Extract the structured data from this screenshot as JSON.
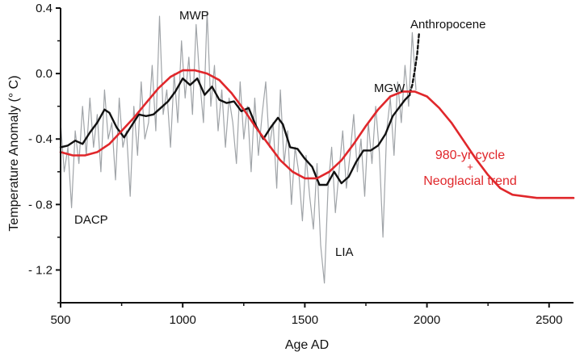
{
  "chart_data": {
    "type": "line",
    "title": "",
    "xlabel": "Age AD",
    "ylabel": "Temperature Anomaly (° C)",
    "xlim": [
      500,
      2600
    ],
    "ylim": [
      -1.4,
      0.4
    ],
    "x_ticks": [
      500,
      1000,
      1500,
      2000,
      2500
    ],
    "y_ticks": [
      0.4,
      0.0,
      -0.4,
      -0.8,
      -1.2
    ],
    "y_tick_labels": [
      "0.4",
      "0.0",
      "- 0.4",
      "- 0.8",
      "- 1.2"
    ],
    "grid": false,
    "annotations": [
      {
        "text": "MWP",
        "x": 1030,
        "y": 0.39
      },
      {
        "text": "DACP",
        "x": 570,
        "y": -0.87
      },
      {
        "text": "LIA",
        "x": 1575,
        "y": -1.12
      },
      {
        "text": "MGW",
        "x": 1830,
        "y": 0.02
      },
      {
        "text": "Anthropocene",
        "x": 2090,
        "y": 0.33
      }
    ],
    "red_annotation": {
      "line1": "980-yr cycle",
      "plus": "+",
      "line2": "Neoglacial trend"
    },
    "series": [
      {
        "color": "#a0a4a8",
        "x": [
          500,
          515,
          530,
          545,
          560,
          575,
          590,
          605,
          620,
          635,
          650,
          665,
          680,
          695,
          710,
          725,
          740,
          755,
          770,
          785,
          800,
          815,
          830,
          845,
          860,
          875,
          890,
          905,
          920,
          935,
          950,
          965,
          980,
          995,
          1010,
          1025,
          1040,
          1055,
          1070,
          1085,
          1100,
          1115,
          1130,
          1145,
          1160,
          1175,
          1190,
          1205,
          1220,
          1235,
          1250,
          1265,
          1280,
          1295,
          1310,
          1325,
          1340,
          1355,
          1370,
          1385,
          1400,
          1415,
          1430,
          1445,
          1460,
          1475,
          1490,
          1505,
          1520,
          1535,
          1550,
          1565,
          1580,
          1595,
          1610,
          1625,
          1640,
          1655,
          1670,
          1685,
          1700,
          1715,
          1730,
          1745,
          1760,
          1775,
          1790,
          1805,
          1820,
          1835,
          1850,
          1865,
          1880,
          1895,
          1910,
          1925,
          1940,
          1955
        ],
        "y": [
          -0.3,
          -0.6,
          -0.45,
          -0.82,
          -0.35,
          -0.55,
          -0.2,
          -0.5,
          -0.15,
          -0.45,
          -0.25,
          -0.6,
          -0.1,
          -0.4,
          -0.3,
          -0.65,
          -0.15,
          -0.45,
          -0.35,
          -0.75,
          -0.2,
          -0.5,
          -0.05,
          -0.4,
          -0.3,
          0.05,
          -0.35,
          0.35,
          -0.25,
          -0.1,
          -0.45,
          0.0,
          -0.3,
          0.2,
          -0.15,
          0.1,
          -0.25,
          0.3,
          -0.05,
          -0.3,
          0.38,
          -0.2,
          0.05,
          -0.35,
          -0.1,
          -0.45,
          -0.15,
          -0.3,
          -0.55,
          -0.05,
          -0.4,
          -0.2,
          -0.6,
          -0.15,
          -0.5,
          -0.25,
          -0.05,
          -0.45,
          -0.3,
          -0.7,
          -0.1,
          -0.55,
          -0.35,
          -0.8,
          -0.45,
          -0.6,
          -0.9,
          -0.5,
          -0.75,
          -0.95,
          -0.55,
          -1.05,
          -1.28,
          -0.7,
          -0.45,
          -0.85,
          -0.6,
          -0.35,
          -0.7,
          -0.5,
          -0.25,
          -0.6,
          -0.4,
          -0.75,
          -0.3,
          -0.55,
          -0.2,
          -0.48,
          -1.0,
          -0.35,
          -0.15,
          -0.5,
          -0.05,
          -0.3,
          0.05,
          -0.2,
          0.25,
          -0.1
        ]
      },
      {
        "color": "#111111",
        "x": [
          500,
          530,
          560,
          590,
          620,
          650,
          680,
          700,
          730,
          760,
          790,
          820,
          850,
          880,
          910,
          940,
          970,
          1000,
          1030,
          1060,
          1090,
          1120,
          1150,
          1180,
          1210,
          1240,
          1270,
          1300,
          1330,
          1360,
          1390,
          1410,
          1440,
          1470,
          1500,
          1530,
          1560,
          1590,
          1620,
          1650,
          1680,
          1710,
          1740,
          1770,
          1800,
          1830,
          1860,
          1890,
          1910,
          1930
        ],
        "y": [
          -0.45,
          -0.44,
          -0.41,
          -0.43,
          -0.36,
          -0.3,
          -0.22,
          -0.24,
          -0.33,
          -0.39,
          -0.32,
          -0.25,
          -0.26,
          -0.25,
          -0.21,
          -0.17,
          -0.11,
          -0.03,
          -0.07,
          -0.03,
          -0.13,
          -0.08,
          -0.16,
          -0.18,
          -0.17,
          -0.23,
          -0.21,
          -0.32,
          -0.4,
          -0.33,
          -0.27,
          -0.31,
          -0.45,
          -0.46,
          -0.52,
          -0.57,
          -0.68,
          -0.68,
          -0.6,
          -0.67,
          -0.63,
          -0.54,
          -0.47,
          -0.47,
          -0.44,
          -0.37,
          -0.26,
          -0.2,
          -0.16,
          -0.13
        ]
      },
      {
        "color": "#111111",
        "dash": "dashed",
        "x": [
          1930,
          1940,
          1950,
          1960,
          1968
        ],
        "y": [
          -0.12,
          -0.07,
          0.02,
          0.12,
          0.25
        ]
      },
      {
        "color": "#e0272b",
        "x": [
          500,
          550,
          600,
          650,
          700,
          750,
          800,
          850,
          900,
          950,
          1000,
          1050,
          1100,
          1150,
          1200,
          1250,
          1300,
          1350,
          1400,
          1450,
          1500,
          1550,
          1600,
          1650,
          1700,
          1750,
          1800,
          1850,
          1900,
          1950,
          2000,
          2050,
          2100,
          2150,
          2200,
          2250,
          2300,
          2350,
          2400,
          2450,
          2500,
          2550,
          2600
        ],
        "y": [
          -0.48,
          -0.5,
          -0.5,
          -0.48,
          -0.43,
          -0.35,
          -0.27,
          -0.18,
          -0.09,
          -0.02,
          0.02,
          0.02,
          0.0,
          -0.04,
          -0.12,
          -0.22,
          -0.33,
          -0.43,
          -0.53,
          -0.6,
          -0.64,
          -0.64,
          -0.6,
          -0.53,
          -0.43,
          -0.32,
          -0.22,
          -0.14,
          -0.11,
          -0.11,
          -0.14,
          -0.21,
          -0.3,
          -0.41,
          -0.52,
          -0.62,
          -0.7,
          -0.74,
          -0.75,
          -0.76,
          -0.76,
          -0.76,
          -0.76
        ]
      }
    ]
  }
}
